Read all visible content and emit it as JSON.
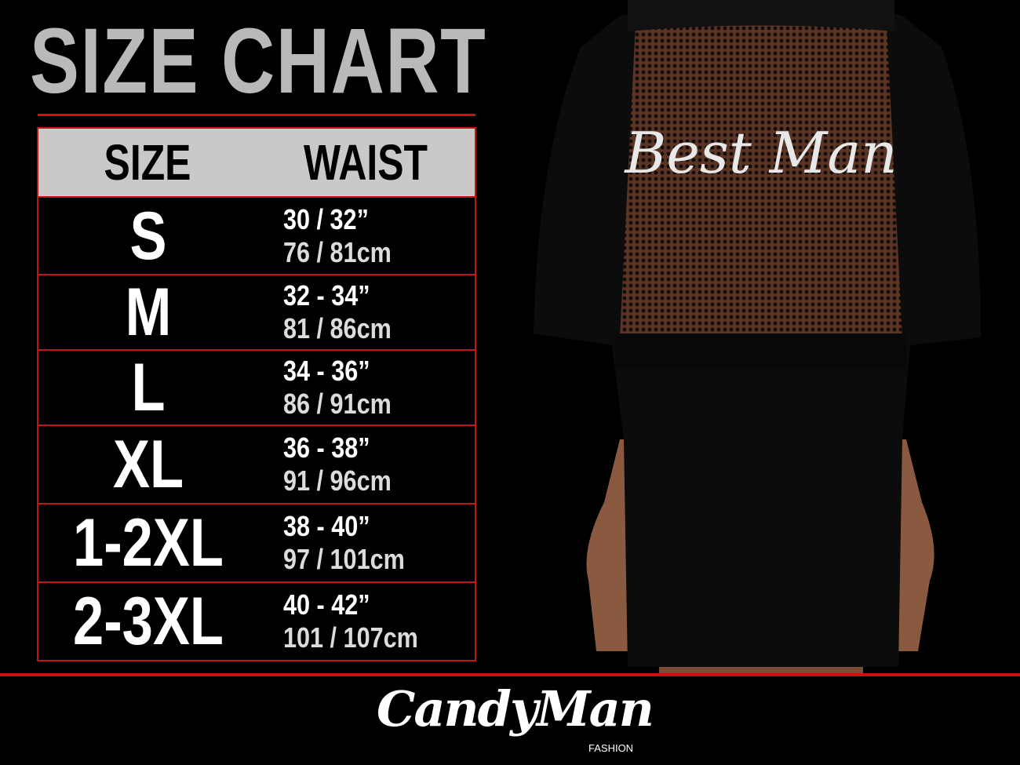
{
  "title": "SIZE CHART",
  "table": {
    "headers": {
      "size": "SIZE",
      "waist": "WAIST"
    },
    "rows": [
      {
        "size": "S",
        "waist_in": "30 / 32”",
        "waist_cm": "76 / 81cm"
      },
      {
        "size": "M",
        "waist_in": "32 - 34”",
        "waist_cm": "81 / 86cm"
      },
      {
        "size": "L",
        "waist_in": "34 - 36”",
        "waist_cm": "86 / 91cm"
      },
      {
        "size": "XL",
        "waist_in": "36 - 38”",
        "waist_cm": "91 / 96cm"
      },
      {
        "size": "1-2XL",
        "waist_in": "38 - 40”",
        "waist_cm": "97 / 101cm"
      },
      {
        "size": "2-3XL",
        "waist_in": "40 - 42”",
        "waist_cm": "101 / 107cm"
      }
    ]
  },
  "garment_print": "Best Man",
  "brand": {
    "name": "CandyMan",
    "sub": "FASHION"
  },
  "colors": {
    "accent": "#d01010",
    "header_bg": "#cbc8c8",
    "title": "#b9b9b9"
  }
}
